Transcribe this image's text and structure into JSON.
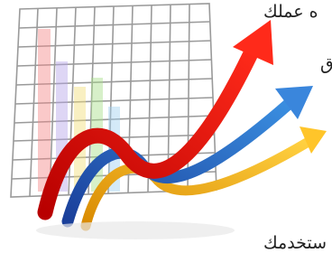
{
  "text": {
    "lines": [
      "ه عملك",
      "ق",
      "ستخدمك"
    ]
  }
}
